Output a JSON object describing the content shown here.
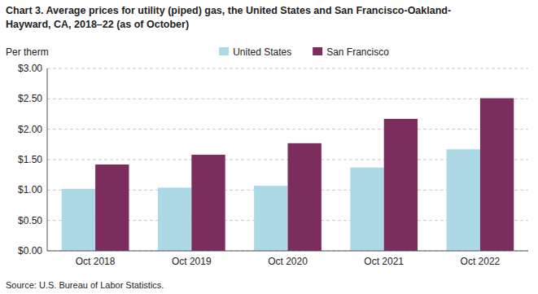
{
  "chart_data": {
    "type": "bar",
    "title": "Chart 3. Average prices for utility (piped) gas, the United States and San Francisco-Oakland-",
    "subtitle": "Hayward, CA, 2018–22 (as of October)",
    "y_label": "Per therm",
    "source": "Source: U.S. Bureau of Labor Statistics.",
    "categories": [
      "Oct 2018",
      "Oct 2019",
      "Oct 2020",
      "Oct 2021",
      "Oct 2022"
    ],
    "series": [
      {
        "name": "United States",
        "color": "#add8e6",
        "values": [
          1.02,
          1.04,
          1.07,
          1.37,
          1.67
        ]
      },
      {
        "name": "San Francisco",
        "color": "#7B2D5E",
        "values": [
          1.42,
          1.58,
          1.77,
          2.17,
          2.51
        ]
      }
    ],
    "ylim": [
      0,
      3.0
    ],
    "yticks": [
      {
        "value": 0.0,
        "label": "$0.00"
      },
      {
        "value": 0.5,
        "label": "$0.50"
      },
      {
        "value": 1.0,
        "label": "$1.00"
      },
      {
        "value": 1.5,
        "label": "$1.50"
      },
      {
        "value": 2.0,
        "label": "$2.00"
      },
      {
        "value": 2.5,
        "label": "$2.50"
      },
      {
        "value": 3.0,
        "label": "$3.00"
      }
    ],
    "grid": true,
    "legend": "top"
  }
}
